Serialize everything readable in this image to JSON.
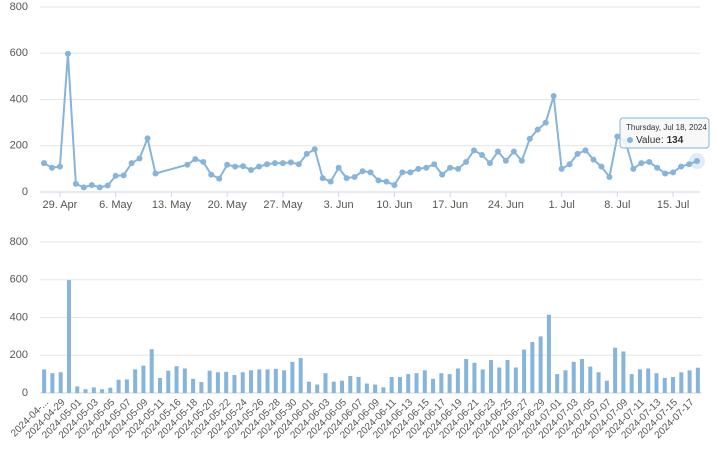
{
  "chart_data": [
    {
      "type": "line",
      "color": "#86b4db",
      "x": [
        "2024-04-27",
        "2024-04-28",
        "2024-04-29",
        "2024-04-30",
        "2024-05-01",
        "2024-05-02",
        "2024-05-03",
        "2024-05-04",
        "2024-05-05",
        "2024-05-06",
        "2024-05-07",
        "2024-05-08",
        "2024-05-09",
        "2024-05-10",
        "2024-05-11",
        "2024-05-15",
        "2024-05-16",
        "2024-05-17",
        "2024-05-18",
        "2024-05-19",
        "2024-05-20",
        "2024-05-21",
        "2024-05-22",
        "2024-05-23",
        "2024-05-24",
        "2024-05-25",
        "2024-05-26",
        "2024-05-27",
        "2024-05-28",
        "2024-05-29",
        "2024-05-30",
        "2024-05-31",
        "2024-06-01",
        "2024-06-02",
        "2024-06-03",
        "2024-06-04",
        "2024-06-05",
        "2024-06-06",
        "2024-06-07",
        "2024-06-08",
        "2024-06-09",
        "2024-06-10",
        "2024-06-11",
        "2024-06-12",
        "2024-06-13",
        "2024-06-14",
        "2024-06-15",
        "2024-06-16",
        "2024-06-17",
        "2024-06-18",
        "2024-06-19",
        "2024-06-20",
        "2024-06-21",
        "2024-06-22",
        "2024-06-23",
        "2024-06-24",
        "2024-06-25",
        "2024-06-26",
        "2024-06-27",
        "2024-06-28",
        "2024-06-29",
        "2024-06-30",
        "2024-07-01",
        "2024-07-02",
        "2024-07-03",
        "2024-07-04",
        "2024-07-05",
        "2024-07-06",
        "2024-07-07",
        "2024-07-08",
        "2024-07-09",
        "2024-07-10",
        "2024-07-11",
        "2024-07-12",
        "2024-07-13",
        "2024-07-14",
        "2024-07-15",
        "2024-07-16",
        "2024-07-17",
        "2024-07-18"
      ],
      "values": [
        125,
        105,
        110,
        598,
        35,
        20,
        30,
        20,
        28,
        70,
        72,
        125,
        145,
        232,
        80,
        118,
        142,
        130,
        75,
        58,
        118,
        110,
        112,
        95,
        110,
        120,
        125,
        125,
        128,
        120,
        165,
        185,
        60,
        45,
        105,
        60,
        65,
        90,
        85,
        50,
        45,
        30,
        85,
        85,
        100,
        105,
        120,
        75,
        105,
        100,
        130,
        180,
        160,
        125,
        175,
        135,
        175,
        135,
        230,
        270,
        300,
        415,
        100,
        120,
        165,
        180,
        140,
        110,
        65,
        240,
        220,
        100,
        125,
        130,
        105,
        80,
        85,
        110,
        120,
        134
      ],
      "xlim": [
        "2024-04-27",
        "2024-07-18"
      ],
      "xticks": [
        {
          "value": "2024-04-29",
          "label": "29. Apr"
        },
        {
          "value": "2024-05-06",
          "label": "6. May"
        },
        {
          "value": "2024-05-13",
          "label": "13. May"
        },
        {
          "value": "2024-05-20",
          "label": "20. May"
        },
        {
          "value": "2024-05-27",
          "label": "27. May"
        },
        {
          "value": "2024-06-03",
          "label": "3. Jun"
        },
        {
          "value": "2024-06-10",
          "label": "10. Jun"
        },
        {
          "value": "2024-06-17",
          "label": "17. Jun"
        },
        {
          "value": "2024-06-24",
          "label": "24. Jun"
        },
        {
          "value": "2024-07-01",
          "label": "1. Jul"
        },
        {
          "value": "2024-07-08",
          "label": "8. Jul"
        },
        {
          "value": "2024-07-15",
          "label": "15. Jul"
        }
      ],
      "ylim": [
        0,
        800
      ],
      "yticks": [
        0,
        200,
        400,
        600,
        800
      ],
      "grid": true,
      "tooltip": {
        "date": "Thursday, Jul 18, 2024",
        "label": "Value:",
        "value": 134
      }
    },
    {
      "type": "bar",
      "color": "#86b4db",
      "categories": [
        "2024-04-...",
        null,
        "2024-04-29",
        null,
        "2024-05-01",
        null,
        "2024-05-03",
        null,
        "2024-05-05",
        null,
        "2024-05-07",
        null,
        "2024-05-09",
        null,
        "2024-05-11",
        null,
        "2024-05-16",
        null,
        "2024-05-18",
        null,
        "2024-05-20",
        null,
        "2024-05-22",
        null,
        "2024-05-24",
        null,
        "2024-05-26",
        null,
        "2024-05-28",
        null,
        "2024-05-30",
        null,
        "2024-06-01",
        null,
        "2024-06-03",
        null,
        "2024-06-05",
        null,
        "2024-06-07",
        null,
        "2024-06-09",
        null,
        "2024-06-11",
        null,
        "2024-06-13",
        null,
        "2024-06-15",
        null,
        "2024-06-17",
        null,
        "2024-06-19",
        null,
        "2024-06-21",
        null,
        "2024-06-23",
        null,
        "2024-06-25",
        null,
        "2024-06-27",
        null,
        "2024-06-29",
        null,
        "2024-07-01",
        null,
        "2024-07-03",
        null,
        "2024-07-05",
        null,
        "2024-07-07",
        null,
        "2024-07-09",
        null,
        "2024-07-11",
        null,
        "2024-07-13",
        null,
        "2024-07-15",
        null,
        "2024-07-17",
        null
      ],
      "values": [
        125,
        105,
        110,
        598,
        35,
        20,
        30,
        20,
        28,
        70,
        72,
        125,
        145,
        232,
        80,
        118,
        142,
        130,
        75,
        58,
        118,
        110,
        112,
        95,
        110,
        120,
        125,
        125,
        128,
        120,
        165,
        185,
        60,
        45,
        105,
        60,
        65,
        90,
        85,
        50,
        45,
        30,
        85,
        85,
        100,
        105,
        120,
        75,
        105,
        100,
        130,
        180,
        160,
        125,
        175,
        135,
        175,
        135,
        230,
        270,
        300,
        415,
        100,
        120,
        165,
        180,
        140,
        110,
        65,
        240,
        220,
        100,
        125,
        130,
        105,
        80,
        85,
        110,
        120,
        134
      ],
      "ylim": [
        0,
        800
      ],
      "yticks": [
        0,
        200,
        400,
        600,
        800
      ],
      "grid": true
    }
  ]
}
